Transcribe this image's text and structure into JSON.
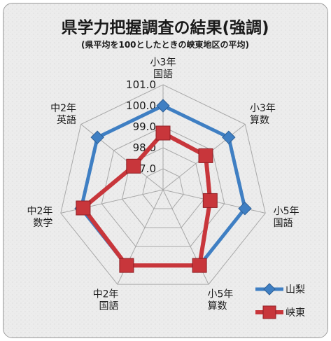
{
  "chart_data": {
    "type": "radar",
    "title": "県学力把握調査の結果(強調)",
    "subtitle": "(県平均を100としたときの峡東地区の平均)",
    "categories": [
      [
        "小3年",
        "国語"
      ],
      [
        "小3年",
        "算数"
      ],
      [
        "小5年",
        "国語"
      ],
      [
        "小5年",
        "算数"
      ],
      [
        "中2年",
        "国語"
      ],
      [
        "中2年",
        "数学"
      ],
      [
        "中2年",
        "英語"
      ]
    ],
    "r_ticks": [
      "97.0",
      "98.0",
      "99.0",
      "100.0",
      "101.0"
    ],
    "r_range": [
      96,
      101
    ],
    "grid": true,
    "legend_position": "bottom-right",
    "series": [
      {
        "name": "山梨",
        "color": "#3f7fc3",
        "marker": "diamond",
        "values": [
          100,
          100,
          100,
          100,
          100,
          100,
          100
        ]
      },
      {
        "name": "峡東",
        "color": "#c8363b",
        "marker": "square",
        "values": [
          98.7,
          98.6,
          98.3,
          100.0,
          100.0,
          99.9,
          97.8
        ]
      }
    ]
  }
}
